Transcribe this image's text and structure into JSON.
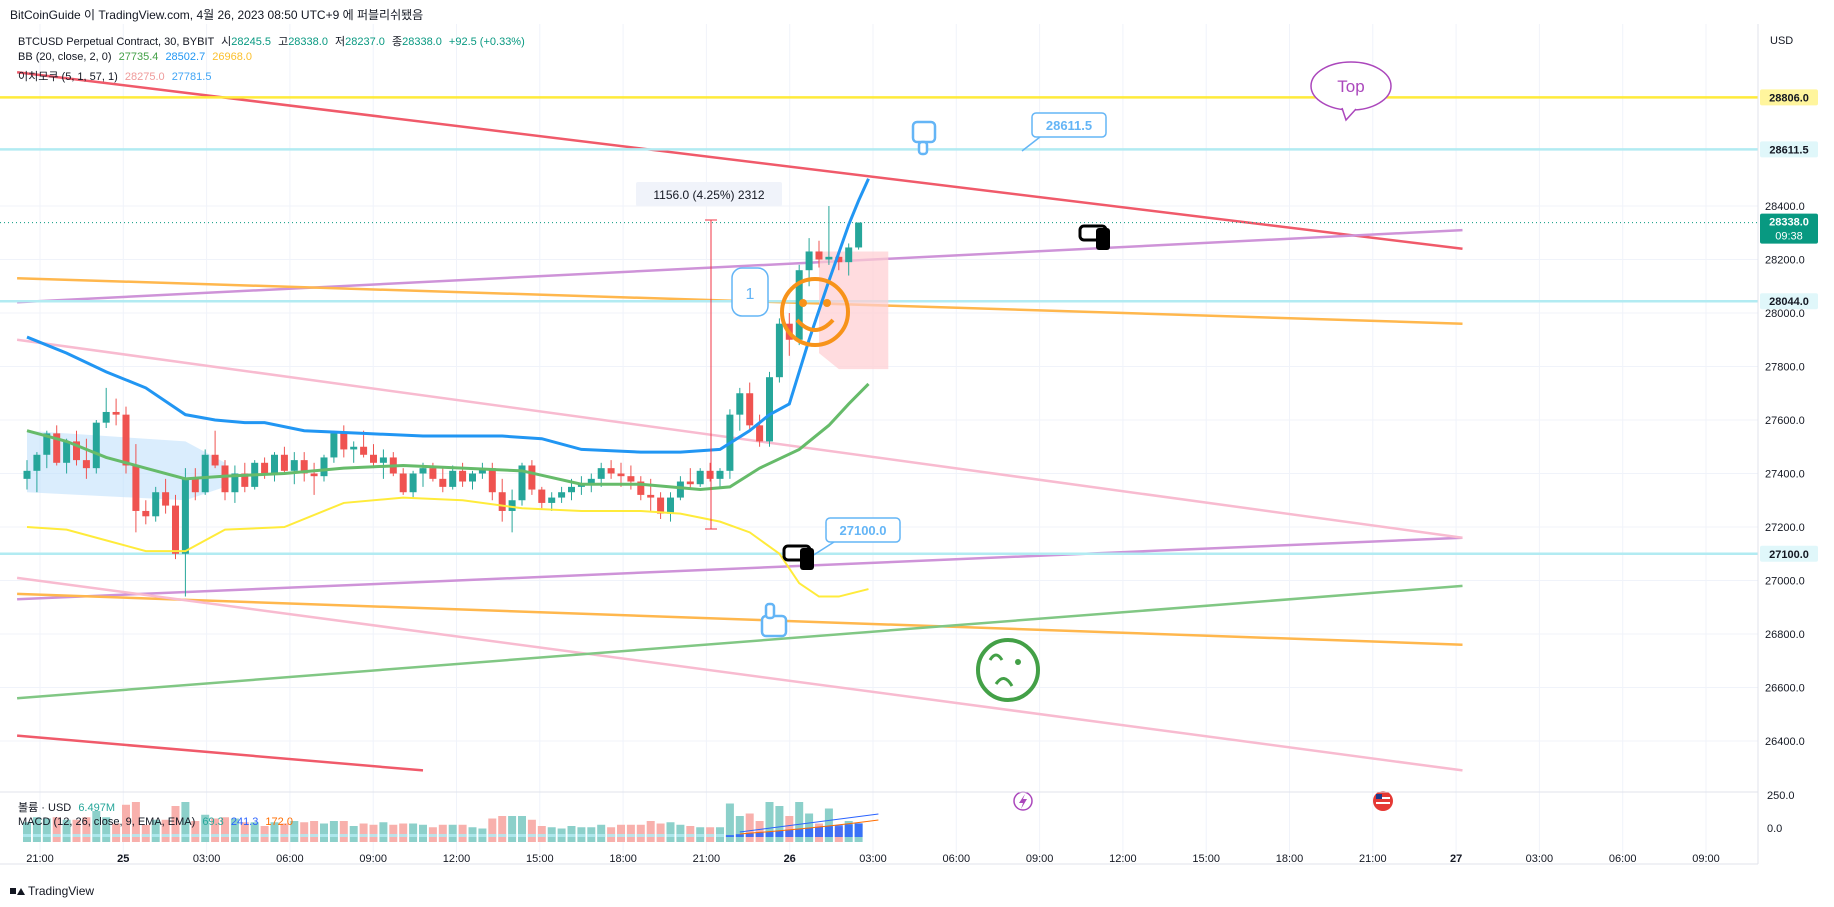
{
  "header": {
    "text": "BitCoinGuide 이 TradingView.com, 4월 26, 2023 08:50 UTC+9 에 퍼블리쉬됐음"
  },
  "footer": {
    "brand": "TradingView"
  },
  "legend": {
    "symbol": "BTCUSD Perpetual Contract, 30, BYBIT",
    "ohlc": [
      {
        "label": "시",
        "value": "28245.5"
      },
      {
        "label": "고",
        "value": "28338.0"
      },
      {
        "label": "저",
        "value": "28237.0"
      },
      {
        "label": "종",
        "value": "28338.0"
      }
    ],
    "change": "+92.5 (+0.33%)",
    "bb": {
      "label": "BB (20, close, 2, 0)",
      "basis": "27735.4",
      "upper": "28502.7",
      "lower": "26968.0"
    },
    "ichimoku": {
      "label": "이치모쿠 (5, 1, 57, 1)",
      "a": "28275.0",
      "b": "27781.5"
    },
    "volume": {
      "label": "볼륨 · USD",
      "value": "6.497M"
    },
    "macd": {
      "label": "MACD (12, 26, close, 9, EMA, EMA)",
      "hist": "69.3",
      "macd": "241.3",
      "signal": "172.0"
    }
  },
  "colors": {
    "up": "#26a69a",
    "down": "#ef5350",
    "bb_upper": "#2196f3",
    "bb_basis": "#66bb6a",
    "bb_lower": "#ffeb3b",
    "red_line": "#f05a6a",
    "orange_line": "#ffb74d",
    "purple_line": "#ce93d8",
    "pink_line": "#f8bbd0",
    "green_line": "#81c784",
    "level_yellow": "#ffeb3b",
    "level_cyan": "#b2ebf2",
    "price_tag": "#089981"
  },
  "chart_data": {
    "type": "line",
    "currency": "USD",
    "y_ticks": [
      "28400.0",
      "28200.0",
      "28000.0",
      "27800.0",
      "27600.0",
      "27400.0",
      "27200.0",
      "27000.0",
      "26800.0",
      "26600.0",
      "26400.0"
    ],
    "x_ticks": [
      "21:00",
      "25",
      "03:00",
      "06:00",
      "09:00",
      "12:00",
      "15:00",
      "18:00",
      "21:00",
      "26",
      "03:00",
      "06:00",
      "09:00",
      "12:00",
      "15:00",
      "18:00",
      "21:00",
      "27",
      "03:00",
      "06:00",
      "09:00"
    ],
    "levels": [
      {
        "price": "28806.0",
        "kind": "yellow"
      },
      {
        "price": "28611.5",
        "kind": "cyan"
      },
      {
        "price": "28044.0",
        "kind": "cyan"
      },
      {
        "price": "27100.0",
        "kind": "cyan"
      }
    ],
    "last_price": "28338.0",
    "countdown": "09:38",
    "measure_label": "1156.0 (4.25%) 2312",
    "callouts": [
      "28611.5",
      "27100.0"
    ],
    "annotations": {
      "top_label": "Top",
      "number_badge": "1"
    },
    "candles": [
      [
        27380,
        27450,
        27340,
        27410
      ],
      [
        27410,
        27480,
        27330,
        27470
      ],
      [
        27470,
        27560,
        27420,
        27550
      ],
      [
        27550,
        27580,
        27430,
        27440
      ],
      [
        27440,
        27530,
        27400,
        27520
      ],
      [
        27520,
        27560,
        27430,
        27450
      ],
      [
        27450,
        27530,
        27380,
        27420
      ],
      [
        27420,
        27600,
        27400,
        27590
      ],
      [
        27590,
        27720,
        27570,
        27630
      ],
      [
        27630,
        27680,
        27580,
        27620
      ],
      [
        27620,
        27650,
        27400,
        27430
      ],
      [
        27430,
        27510,
        27180,
        27260
      ],
      [
        27260,
        27300,
        27210,
        27240
      ],
      [
        27240,
        27350,
        27220,
        27330
      ],
      [
        27330,
        27380,
        27250,
        27280
      ],
      [
        27280,
        27320,
        27080,
        27100
      ],
      [
        27100,
        27420,
        26940,
        27380
      ],
      [
        27380,
        27420,
        27300,
        27330
      ],
      [
        27330,
        27490,
        27320,
        27470
      ],
      [
        27470,
        27560,
        27420,
        27430
      ],
      [
        27430,
        27450,
        27300,
        27330
      ],
      [
        27330,
        27430,
        27290,
        27400
      ],
      [
        27400,
        27440,
        27330,
        27350
      ],
      [
        27350,
        27450,
        27340,
        27440
      ],
      [
        27440,
        27460,
        27380,
        27400
      ],
      [
        27400,
        27480,
        27370,
        27470
      ],
      [
        27470,
        27500,
        27400,
        27410
      ],
      [
        27410,
        27480,
        27360,
        27450
      ],
      [
        27450,
        27480,
        27370,
        27400
      ],
      [
        27400,
        27440,
        27320,
        27390
      ],
      [
        27390,
        27470,
        27370,
        27460
      ],
      [
        27460,
        27560,
        27440,
        27550
      ],
      [
        27550,
        27580,
        27460,
        27490
      ],
      [
        27490,
        27520,
        27440,
        27500
      ],
      [
        27500,
        27560,
        27460,
        27470
      ],
      [
        27470,
        27510,
        27420,
        27440
      ],
      [
        27440,
        27490,
        27380,
        27460
      ],
      [
        27460,
        27480,
        27390,
        27400
      ],
      [
        27400,
        27420,
        27320,
        27330
      ],
      [
        27330,
        27410,
        27310,
        27400
      ],
      [
        27400,
        27440,
        27350,
        27420
      ],
      [
        27420,
        27440,
        27370,
        27380
      ],
      [
        27380,
        27420,
        27330,
        27350
      ],
      [
        27350,
        27430,
        27340,
        27410
      ],
      [
        27410,
        27440,
        27350,
        27370
      ],
      [
        27370,
        27410,
        27340,
        27400
      ],
      [
        27400,
        27440,
        27380,
        27420
      ],
      [
        27420,
        27440,
        27300,
        27330
      ],
      [
        27330,
        27380,
        27220,
        27260
      ],
      [
        27260,
        27340,
        27180,
        27300
      ],
      [
        27300,
        27440,
        27280,
        27430
      ],
      [
        27430,
        27450,
        27320,
        27340
      ],
      [
        27340,
        27350,
        27270,
        27290
      ],
      [
        27290,
        27330,
        27260,
        27310
      ],
      [
        27310,
        27350,
        27290,
        27330
      ],
      [
        27330,
        27380,
        27300,
        27350
      ],
      [
        27350,
        27390,
        27320,
        27360
      ],
      [
        27360,
        27400,
        27330,
        27380
      ],
      [
        27380,
        27440,
        27350,
        27420
      ],
      [
        27420,
        27450,
        27380,
        27400
      ],
      [
        27400,
        27440,
        27350,
        27390
      ],
      [
        27390,
        27430,
        27340,
        27370
      ],
      [
        27370,
        27390,
        27300,
        27320
      ],
      [
        27320,
        27380,
        27260,
        27310
      ],
      [
        27310,
        27330,
        27230,
        27250
      ],
      [
        27250,
        27330,
        27220,
        27310
      ],
      [
        27310,
        27390,
        27300,
        27370
      ],
      [
        27370,
        27420,
        27340,
        27360
      ],
      [
        27360,
        27420,
        27350,
        27410
      ],
      [
        27410,
        27440,
        27370,
        27380
      ],
      [
        27380,
        27420,
        27350,
        27410
      ],
      [
        27410,
        27640,
        27380,
        27620
      ],
      [
        27620,
        27720,
        27560,
        27700
      ],
      [
        27700,
        27740,
        27560,
        27580
      ],
      [
        27580,
        27620,
        27500,
        27520
      ],
      [
        27520,
        27780,
        27500,
        27760
      ],
      [
        27760,
        27980,
        27740,
        27960
      ],
      [
        27960,
        28000,
        27840,
        27900
      ],
      [
        27900,
        28180,
        27880,
        28160
      ],
      [
        28160,
        28280,
        28100,
        28230
      ],
      [
        28230,
        28270,
        28170,
        28200
      ],
      [
        28200,
        28400,
        28180,
        28210
      ],
      [
        28210,
        28230,
        28160,
        28190
      ],
      [
        28190,
        28260,
        28140,
        28245
      ],
      [
        28245,
        28338,
        28237,
        28338
      ]
    ],
    "bb_upper": [
      [
        0,
        27910
      ],
      [
        4,
        27850
      ],
      [
        8,
        27780
      ],
      [
        12,
        27720
      ],
      [
        16,
        27620
      ],
      [
        19,
        27600
      ],
      [
        22,
        27590
      ],
      [
        24,
        27590
      ],
      [
        28,
        27560
      ],
      [
        34,
        27550
      ],
      [
        40,
        27540
      ],
      [
        48,
        27540
      ],
      [
        52,
        27530
      ],
      [
        56,
        27490
      ],
      [
        62,
        27480
      ],
      [
        66,
        27480
      ],
      [
        70,
        27490
      ],
      [
        73,
        27560
      ],
      [
        75,
        27620
      ],
      [
        77,
        27660
      ],
      [
        79,
        27900
      ],
      [
        81,
        28120
      ],
      [
        83,
        28330
      ],
      [
        84,
        28420
      ],
      [
        85,
        28502
      ]
    ],
    "bb_basis": [
      [
        0,
        27560
      ],
      [
        4,
        27520
      ],
      [
        8,
        27460
      ],
      [
        12,
        27420
      ],
      [
        16,
        27380
      ],
      [
        20,
        27390
      ],
      [
        26,
        27400
      ],
      [
        32,
        27420
      ],
      [
        38,
        27430
      ],
      [
        44,
        27420
      ],
      [
        50,
        27410
      ],
      [
        56,
        27360
      ],
      [
        62,
        27360
      ],
      [
        68,
        27340
      ],
      [
        71,
        27350
      ],
      [
        74,
        27420
      ],
      [
        78,
        27490
      ],
      [
        81,
        27580
      ],
      [
        83,
        27660
      ],
      [
        85,
        27735
      ]
    ],
    "bb_lower": [
      [
        0,
        27200
      ],
      [
        4,
        27190
      ],
      [
        8,
        27150
      ],
      [
        12,
        27110
      ],
      [
        16,
        27110
      ],
      [
        20,
        27190
      ],
      [
        26,
        27200
      ],
      [
        32,
        27290
      ],
      [
        38,
        27310
      ],
      [
        44,
        27300
      ],
      [
        50,
        27270
      ],
      [
        56,
        27260
      ],
      [
        62,
        27260
      ],
      [
        66,
        27250
      ],
      [
        70,
        27220
      ],
      [
        73,
        27180
      ],
      [
        76,
        27100
      ],
      [
        78,
        26990
      ],
      [
        80,
        26940
      ],
      [
        82,
        26940
      ],
      [
        85,
        26968
      ]
    ],
    "lines": [
      {
        "kind": "red_line",
        "from": [
          -1,
          28900
        ],
        "to": [
          145,
          28240
        ]
      },
      {
        "kind": "red_line",
        "from": [
          -1,
          26420
        ],
        "to": [
          40,
          26290
        ]
      },
      {
        "kind": "purple_line",
        "from": [
          -1,
          28040
        ],
        "to": [
          145,
          28310
        ]
      },
      {
        "kind": "purple_line",
        "from": [
          -1,
          26930
        ],
        "to": [
          145,
          27160
        ]
      },
      {
        "kind": "orange_line",
        "from": [
          -1,
          28130
        ],
        "to": [
          145,
          27960
        ]
      },
      {
        "kind": "orange_line",
        "from": [
          -1,
          26950
        ],
        "to": [
          145,
          26760
        ]
      },
      {
        "kind": "pink_line",
        "from": [
          -1,
          27900
        ],
        "to": [
          145,
          27160
        ]
      },
      {
        "kind": "pink_line",
        "from": [
          -1,
          27010
        ],
        "to": [
          145,
          26290
        ]
      },
      {
        "kind": "green_line",
        "from": [
          -1,
          26560
        ],
        "to": [
          145,
          26980
        ]
      }
    ]
  }
}
